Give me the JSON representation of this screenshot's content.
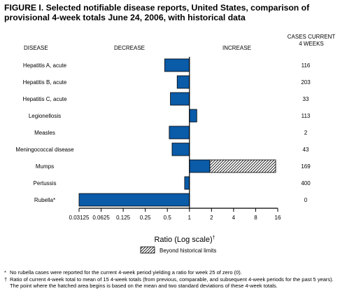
{
  "title": "FIGURE I. Selected notifiable disease reports, United States, comparison of provisional 4-week totals June 24, 2006, with historical data",
  "headers": {
    "disease": "DISEASE",
    "decrease": "DECREASE",
    "increase": "INCREASE",
    "cases_line1": "CASES CURRENT",
    "cases_line2": "4 WEEKS"
  },
  "legend_label": "Beyond historical limits",
  "footnotes": [
    {
      "mark": "*",
      "text": "No rubella cases were reported for the current 4-week period yielding a ratio for week 25 of zero (0)."
    },
    {
      "mark": "†",
      "text": "Ratio of current 4-week total to mean of 15 4-week totals (from previous, comparable, and subsequent 4-week periods for the past 5 years). The point where the hatched area begins is based on the mean and two standard deviations of these 4-week totals."
    }
  ],
  "colors": {
    "bar": "#0a5ba8",
    "bar_outline": "#000000",
    "axis": "#000000",
    "hatch": "#000000"
  },
  "chart_data": {
    "type": "bar",
    "orientation": "horizontal",
    "scale": "log2",
    "reference_value": 1,
    "xlabel": "Ratio (Log scale)",
    "xlabel_mark": "†",
    "x_ticks": [
      "0.03125",
      "0.0625",
      "0.125",
      "0.25",
      "0.5",
      "1",
      "2",
      "4",
      "8",
      "16"
    ],
    "x_tick_values": [
      0.03125,
      0.0625,
      0.125,
      0.25,
      0.5,
      1,
      2,
      4,
      8,
      16
    ],
    "xlim": [
      0.03125,
      16
    ],
    "categories": [
      "Hepatitis A, acute",
      "Hepatitis B, acute",
      "Hepatitis C, acute",
      "Legionellosis",
      "Measles",
      "Meningococcal disease",
      "Mumps",
      "Pertussis",
      "Rubella*"
    ],
    "values": [
      0.46,
      0.68,
      0.55,
      1.26,
      0.53,
      0.58,
      15.0,
      0.86,
      0.03125
    ],
    "beyond_limits_start": [
      null,
      null,
      null,
      null,
      null,
      null,
      1.9,
      null,
      null
    ],
    "cases_current_4_weeks": [
      116,
      203,
      33,
      113,
      2,
      43,
      169,
      400,
      0
    ],
    "legend": [
      "Beyond historical limits"
    ]
  }
}
